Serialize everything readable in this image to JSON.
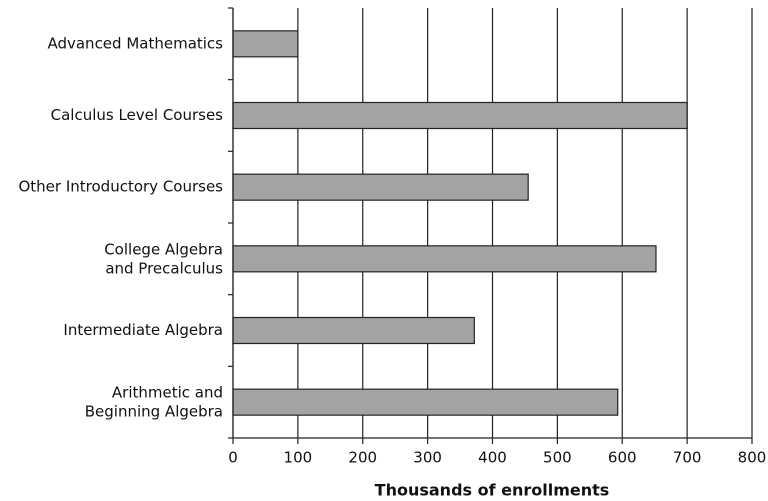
{
  "chart_data": {
    "type": "bar",
    "orientation": "horizontal",
    "x_label": "Thousands of enrollments",
    "categories": [
      "Advanced Mathematics",
      "Calculus Level Courses",
      "Other Introductory Courses",
      "College Algebra\nand Precalculus",
      "Intermediate Algebra",
      "Arithmetic and\nBeginning Algebra"
    ],
    "values": [
      100,
      700,
      455,
      652,
      372,
      593
    ],
    "color": "#a3a3a3",
    "xlim": [
      0,
      800
    ],
    "xticks": [
      0,
      100,
      200,
      300,
      400,
      500,
      600,
      700,
      800
    ],
    "grid": true
  }
}
